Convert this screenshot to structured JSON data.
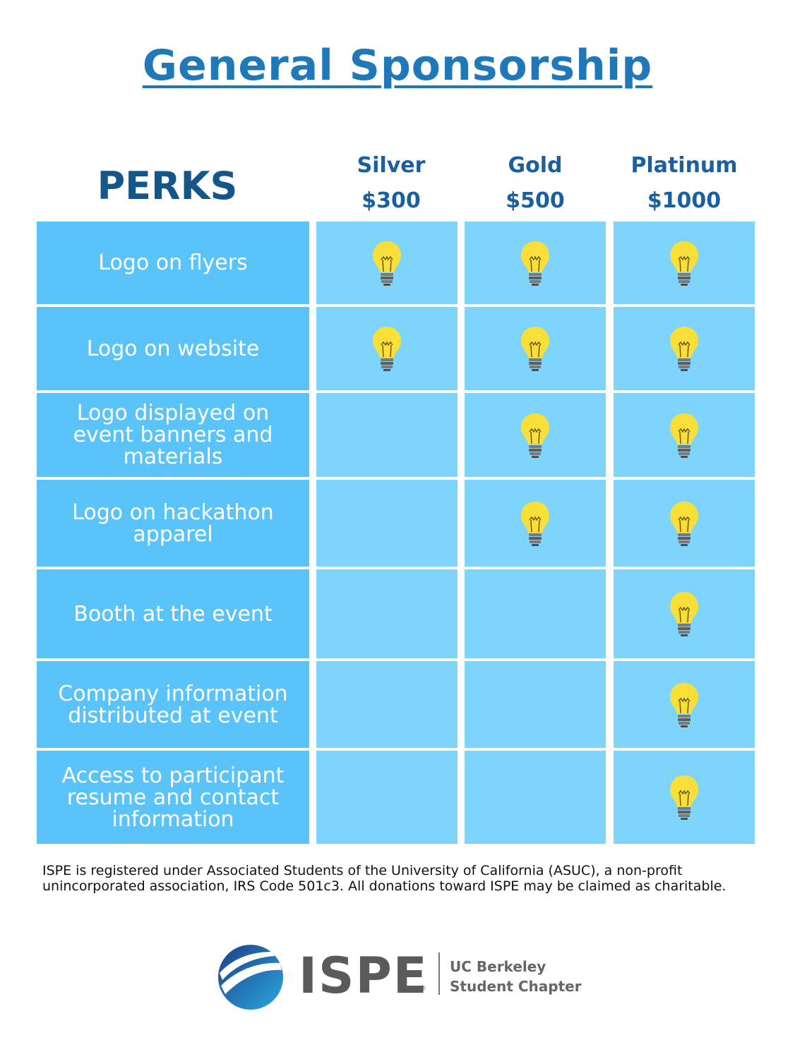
{
  "title": "General Sponsorship",
  "table": {
    "perks_heading": "PERKS",
    "tiers": [
      {
        "name": "Silver",
        "price": "$300"
      },
      {
        "name": "Gold",
        "price": "$500"
      },
      {
        "name": "Platinum",
        "price": "$1000"
      }
    ],
    "rows": [
      {
        "perk": "Logo on flyers",
        "included": [
          true,
          true,
          true
        ]
      },
      {
        "perk": "Logo on website",
        "included": [
          true,
          true,
          true
        ]
      },
      {
        "perk": "Logo displayed on event banners and materials",
        "included": [
          false,
          true,
          true
        ]
      },
      {
        "perk": "Logo on hackathon apparel",
        "included": [
          false,
          true,
          true
        ]
      },
      {
        "perk": "Booth at the event",
        "included": [
          false,
          false,
          true
        ]
      },
      {
        "perk": "Company information distributed at event",
        "included": [
          false,
          false,
          true
        ]
      },
      {
        "perk": "Access to participant resume and contact information",
        "included": [
          false,
          false,
          true
        ]
      }
    ],
    "included_icon": "lightbulb-icon"
  },
  "footnote": "ISPE is registered under Associated Students of the University of California (ASUC), a non-profit unincorporated association, IRS Code 501c3. All donations toward ISPE may be claimed as charitable.",
  "logo": {
    "name": "ISPE",
    "registered": "®",
    "subtitle_line1": "UC Berkeley",
    "subtitle_line2": "Student Chapter"
  },
  "colors": {
    "title": "#1f78b8",
    "perk_cell": "#5ac3fa",
    "tier_cell": "#7fd4fb",
    "bulb": "#f9df3a"
  }
}
